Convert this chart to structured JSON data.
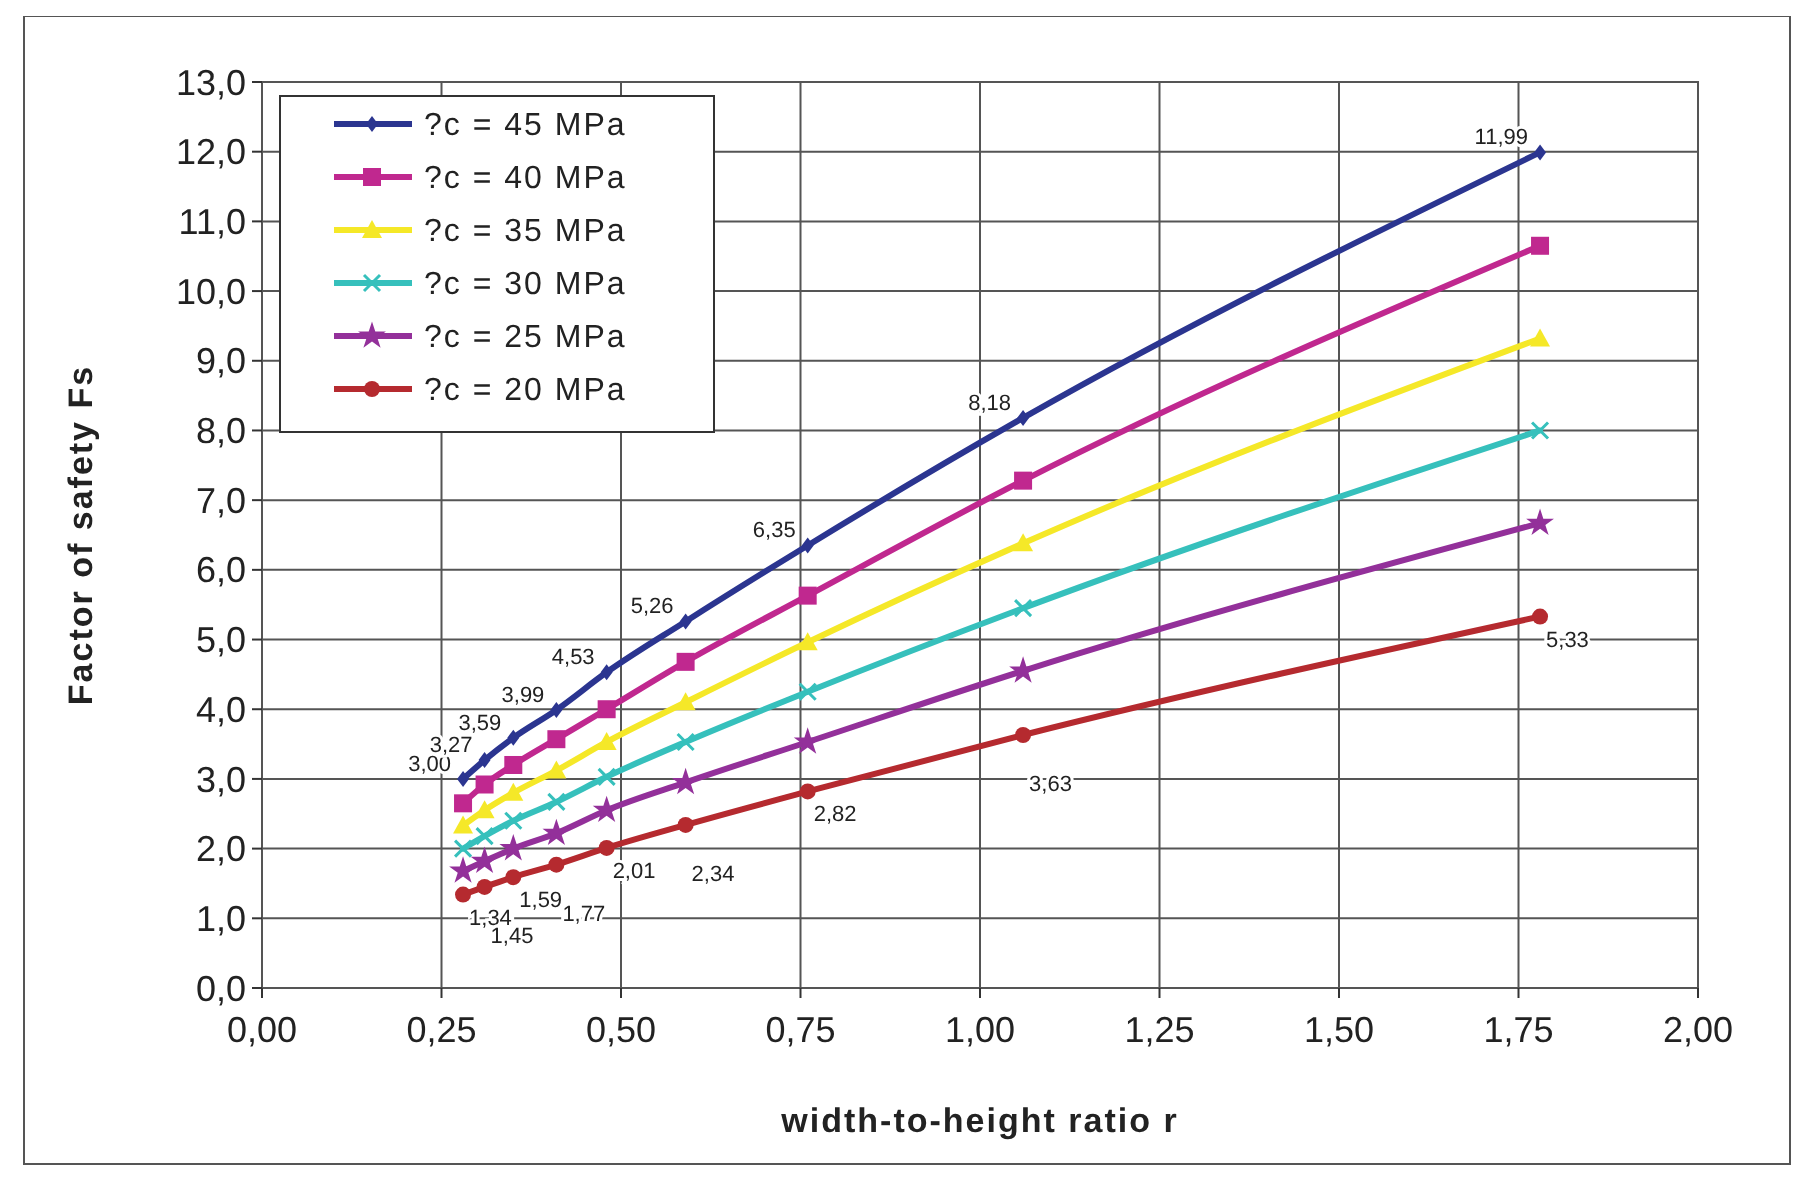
{
  "chart_data": {
    "type": "line",
    "xlabel": "width-to-height ratio r",
    "ylabel": "Factor of safety Fs",
    "x": [
      0.28,
      0.31,
      0.35,
      0.41,
      0.48,
      0.59,
      0.76,
      1.06,
      1.78
    ],
    "series": [
      {
        "name": "?c = 45 MPa",
        "color": "#2b3590",
        "marker": "diamond",
        "values": [
          3.0,
          3.27,
          3.59,
          3.99,
          4.53,
          5.26,
          6.35,
          8.18,
          11.99
        ],
        "value_labels": [
          "3,00",
          "3,27",
          "3,59",
          "3,99",
          "4,53",
          "5,26",
          "6,35",
          "8,18",
          "11,99"
        ]
      },
      {
        "name": "?c = 40 MPa",
        "color": "#c0288f",
        "marker": "square",
        "values": [
          2.65,
          2.92,
          3.2,
          3.57,
          4.0,
          4.68,
          5.63,
          7.28,
          10.65
        ]
      },
      {
        "name": "?c = 35 MPa",
        "color": "#f5e828",
        "marker": "triangle",
        "values": [
          2.33,
          2.55,
          2.8,
          3.12,
          3.53,
          4.1,
          4.96,
          6.38,
          9.32
        ]
      },
      {
        "name": "?c = 30 MPa",
        "color": "#36c0bc",
        "marker": "cross",
        "values": [
          2.0,
          2.18,
          2.4,
          2.67,
          3.03,
          3.53,
          4.25,
          5.45,
          8.0
        ]
      },
      {
        "name": "?c = 25 MPa",
        "color": "#93309a",
        "marker": "star",
        "values": [
          1.68,
          1.82,
          2.0,
          2.22,
          2.55,
          2.95,
          3.53,
          4.55,
          6.67
        ]
      },
      {
        "name": "?c = 20 MPa",
        "color": "#b52a2f",
        "marker": "circle",
        "values": [
          1.34,
          1.45,
          1.59,
          1.77,
          2.01,
          2.34,
          2.82,
          3.63,
          5.33
        ],
        "value_labels": [
          "1,34",
          "1,45",
          "1,59",
          "1,77",
          "2,01",
          "2,34",
          "2,82",
          "3,63",
          "5,33"
        ]
      }
    ],
    "xlim": [
      0,
      2
    ],
    "xticks": [
      {
        "value": 0,
        "label": "0,00"
      },
      {
        "value": 0.25,
        "label": "0,25"
      },
      {
        "value": 0.5,
        "label": "0,50"
      },
      {
        "value": 0.75,
        "label": "0,75"
      },
      {
        "value": 1,
        "label": "1,00"
      },
      {
        "value": 1.25,
        "label": "1,25"
      },
      {
        "value": 1.5,
        "label": "1,50"
      },
      {
        "value": 1.75,
        "label": "1,75"
      },
      {
        "value": 2,
        "label": "2,00"
      }
    ],
    "ylim": [
      0,
      13
    ],
    "yticks": [
      {
        "value": 0,
        "label": "0,0"
      },
      {
        "value": 1,
        "label": "1,0"
      },
      {
        "value": 2,
        "label": "2,0"
      },
      {
        "value": 3,
        "label": "3,0"
      },
      {
        "value": 4,
        "label": "4,0"
      },
      {
        "value": 5,
        "label": "5,0"
      },
      {
        "value": 6,
        "label": "6,0"
      },
      {
        "value": 7,
        "label": "7,0"
      },
      {
        "value": 8,
        "label": "8,0"
      },
      {
        "value": 9,
        "label": "9,0"
      },
      {
        "value": 10,
        "label": "10,0"
      },
      {
        "value": 11,
        "label": "11,0"
      },
      {
        "value": 12,
        "label": "12,0"
      },
      {
        "value": 13,
        "label": "13,0"
      }
    ],
    "grid": true,
    "legend": "top left",
    "line_style": "solid"
  }
}
